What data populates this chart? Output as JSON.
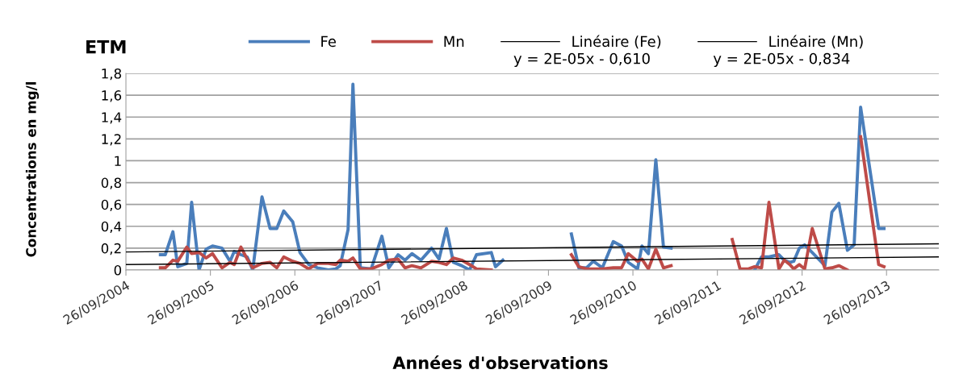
{
  "chart_data": {
    "type": "line",
    "title": "ETM",
    "xlabel": "Années d'observations",
    "ylabel": "Concentrations en mg/l",
    "x": [
      "2005-02-22",
      "2005-03-15",
      "2005-04-17",
      "2005-05-08",
      "2005-06-16",
      "2005-07-07",
      "2005-08-08",
      "2005-09-07",
      "2005-10-05",
      "2005-11-15",
      "2005-12-20",
      "2006-01-07",
      "2006-02-05",
      "2006-03-04",
      "2006-03-28",
      "2006-05-07",
      "2006-06-11",
      "2006-07-10",
      "2006-08-09",
      "2006-09-17",
      "2006-10-18",
      "2006-11-25",
      "2007-01-02",
      "2007-02-18",
      "2007-03-22",
      "2007-04-10",
      "2007-05-14",
      "2007-06-04",
      "2007-07-06",
      "2007-08-22",
      "2007-10-07",
      "2007-11-06",
      "2007-12-16",
      "2008-01-15",
      "2008-02-14",
      "2008-03-24",
      "2008-05-09",
      "2008-06-10",
      "2008-07-12",
      "2008-08-11",
      "2008-09-16",
      "2008-10-20",
      "2008-11-19",
      "2009-01-22",
      "2009-02-09",
      "2009-03-13",
      "2009-08-01",
      "2010-01-03",
      "2010-02-04",
      "2010-03-09",
      "2010-04-08",
      "2010-05-17",
      "2010-07-03",
      "2010-08-08",
      "2010-09-06",
      "2010-10-16",
      "2010-11-04",
      "2010-12-02",
      "2011-01-03",
      "2011-02-05",
      "2011-03-10",
      "2011-07-01",
      "2011-11-29",
      "2012-01-02",
      "2012-02-07",
      "2012-03-05",
      "2012-04-04",
      "2012-05-06",
      "2012-06-18",
      "2012-07-11",
      "2012-08-04",
      "2012-08-21",
      "2012-09-14",
      "2012-10-07",
      "2012-11-09",
      "2013-01-03",
      "2013-02-02",
      "2013-03-04",
      "2013-04-10",
      "2013-05-09",
      "2013-06-06",
      "2013-08-23",
      "2013-09-15"
    ],
    "series": [
      {
        "name": "Fe",
        "color": "#4a7ebb",
        "values": [
          0.14,
          0.14,
          0.35,
          0.03,
          0.06,
          0.62,
          0.0,
          0.19,
          0.22,
          0.2,
          0.08,
          0.17,
          0.14,
          0.12,
          0.0,
          0.67,
          0.38,
          0.38,
          0.54,
          0.44,
          0.16,
          0.05,
          0.02,
          0.0,
          0.01,
          0.04,
          0.37,
          1.7,
          0.02,
          0.01,
          0.31,
          0.02,
          0.14,
          0.09,
          0.15,
          0.09,
          0.2,
          0.1,
          0.38,
          0.07,
          0.04,
          0.0,
          0.14,
          0.16,
          0.03,
          0.09,
          null,
          0.33,
          0.02,
          0.02,
          0.08,
          0.02,
          0.26,
          0.22,
          0.07,
          0.01,
          0.22,
          0.15,
          1.01,
          0.21,
          0.2,
          null,
          null,
          null,
          null,
          0.0,
          0.12,
          0.12,
          0.14,
          0.09,
          0.07,
          0.08,
          0.2,
          0.23,
          0.16,
          0.04,
          0.53,
          0.61,
          0.18,
          0.23,
          1.49,
          0.38,
          0.38
        ]
      },
      {
        "name": "Mn",
        "color": "#be4b48",
        "values": [
          0.02,
          0.02,
          0.09,
          0.08,
          0.21,
          0.15,
          0.16,
          0.11,
          0.15,
          0.02,
          0.07,
          0.05,
          0.21,
          0.1,
          0.02,
          0.06,
          0.07,
          0.02,
          0.12,
          0.08,
          0.06,
          0.01,
          0.06,
          0.06,
          0.05,
          0.09,
          0.08,
          0.11,
          0.01,
          0.01,
          0.05,
          0.09,
          0.1,
          0.02,
          0.04,
          0.02,
          0.08,
          0.07,
          0.05,
          0.11,
          0.09,
          0.05,
          0.01,
          0.0,
          null,
          null,
          null,
          0.14,
          0.03,
          0.01,
          0.01,
          0.01,
          0.02,
          0.02,
          0.15,
          0.08,
          0.1,
          0.01,
          0.19,
          0.02,
          0.04,
          null,
          0.28,
          0.01,
          0.01,
          0.03,
          0.02,
          0.62,
          0.01,
          0.09,
          0.05,
          0.01,
          0.05,
          0.01,
          0.38,
          0.01,
          0.02,
          0.04,
          0.0,
          null,
          1.22,
          0.05,
          0.03
        ]
      },
      {
        "name": "Linéaire (Fe)",
        "color": "#000000",
        "x": [
          "2004-09-26",
          "2014-05-10"
        ],
        "values": [
          0.165,
          0.24
        ]
      },
      {
        "name": "Linéaire (Mn)",
        "color": "#000000",
        "x": [
          "2004-09-26",
          "2014-05-10"
        ],
        "values": [
          0.05,
          0.12
        ]
      }
    ],
    "annotations": [
      "y = 2E-05x - 0,610",
      "y = 2E-05x - 0,834"
    ],
    "xlim": [
      "2004-09-26",
      "2014-05-10"
    ],
    "xticks": [
      {
        "value": "2004-09-26",
        "label": "26/09/2004"
      },
      {
        "value": "2005-09-26",
        "label": "26/09/2005"
      },
      {
        "value": "2006-09-26",
        "label": "26/09/2006"
      },
      {
        "value": "2007-09-26",
        "label": "26/09/2007"
      },
      {
        "value": "2008-09-26",
        "label": "26/09/2008"
      },
      {
        "value": "2009-09-26",
        "label": "26/09/2009"
      },
      {
        "value": "2010-09-26",
        "label": "26/09/2010"
      },
      {
        "value": "2011-09-26",
        "label": "26/09/2011"
      },
      {
        "value": "2012-09-26",
        "label": "26/09/2012"
      },
      {
        "value": "2013-09-26",
        "label": "26/09/2013"
      }
    ],
    "ylim": [
      0,
      1.8
    ],
    "yticks": [
      0,
      {
        "value": 0.2,
        "label": "0,2"
      },
      {
        "value": 0.4,
        "label": "0,4"
      },
      {
        "value": 0.6,
        "label": "0,6"
      },
      {
        "value": 0.8,
        "label": "0,8"
      },
      1,
      {
        "value": 1.2,
        "label": "1,2"
      },
      {
        "value": 1.4,
        "label": "1,4"
      },
      {
        "value": 1.6,
        "label": "1,6"
      },
      {
        "value": 1.8,
        "label": "1,8"
      }
    ],
    "grid": "y",
    "legend": "top",
    "marker": "none",
    "line_style": "solid"
  }
}
